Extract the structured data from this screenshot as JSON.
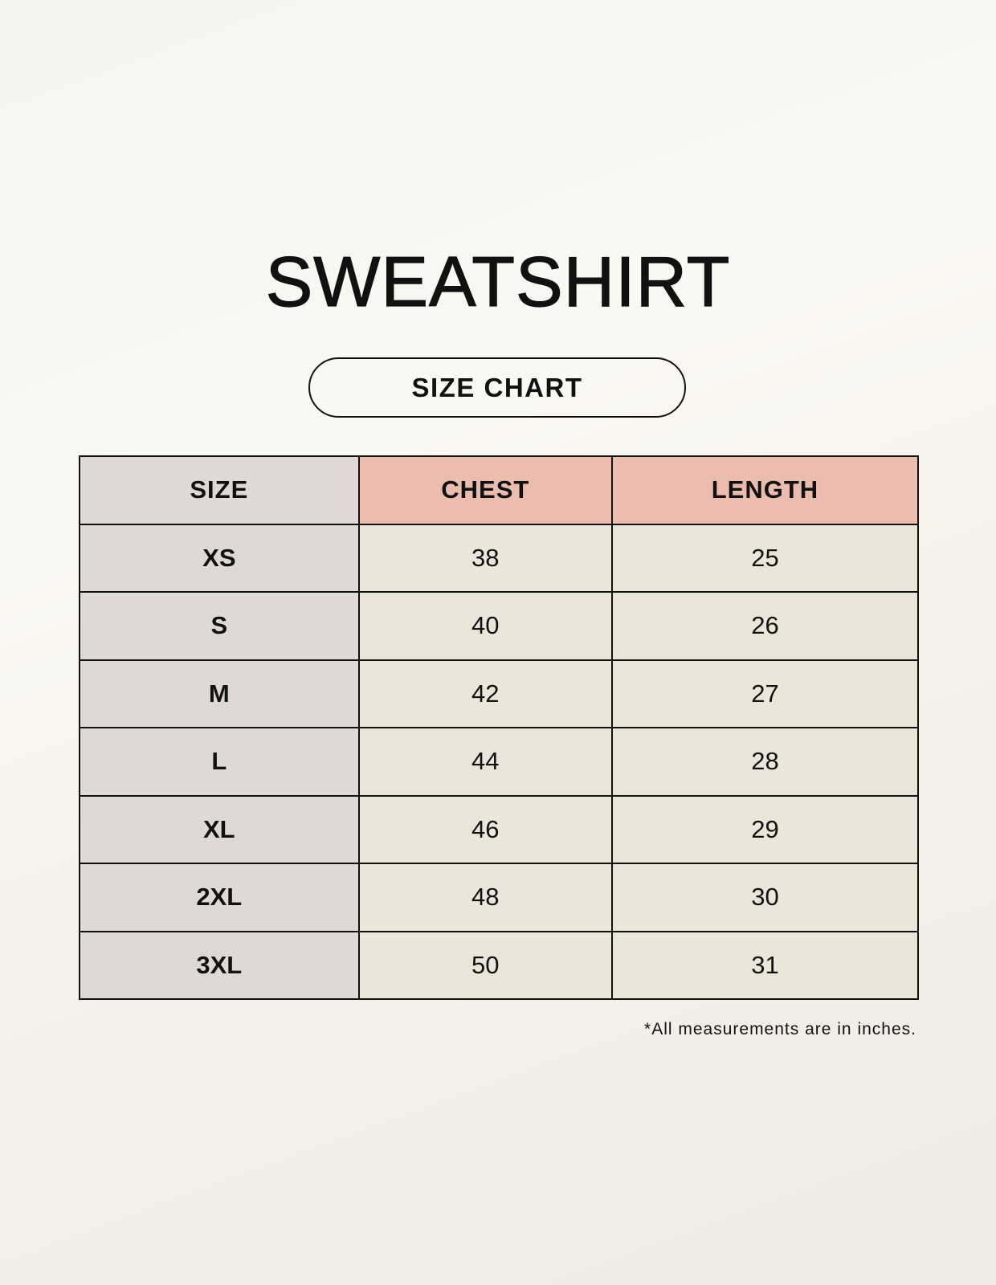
{
  "title": "SWEATSHIRT",
  "subtitle": "SIZE CHART",
  "colors": {
    "size_column": "#e0d8d5",
    "header_measure": "#ecbdaf",
    "value_cells": "#ebe5da"
  },
  "table": {
    "headers": [
      "SIZE",
      "CHEST",
      "LENGTH"
    ],
    "rows": [
      [
        "XS",
        "38",
        "25"
      ],
      [
        "S",
        "40",
        "26"
      ],
      [
        "M",
        "42",
        "27"
      ],
      [
        "L",
        "44",
        "28"
      ],
      [
        "XL",
        "46",
        "29"
      ],
      [
        "2XL",
        "48",
        "30"
      ],
      [
        "3XL",
        "50",
        "31"
      ]
    ]
  },
  "footnote": "*All measurements are in inches."
}
